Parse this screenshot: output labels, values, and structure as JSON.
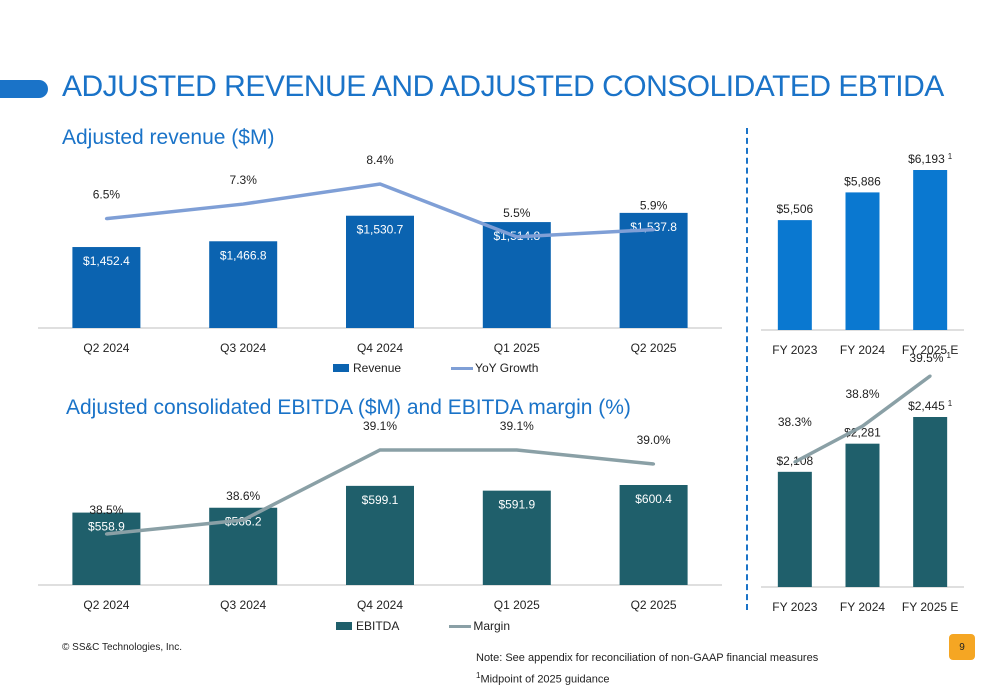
{
  "page": {
    "title": "ADJUSTED REVENUE AND ADJUSTED CONSOLIDATED EBTIDA",
    "copyright": "© SS&C Technologies, Inc.",
    "note_line1": "Note: See appendix for reconciliation of non-GAAP financial measures",
    "note_line2": "Midpoint of 2025 guidance",
    "note_sup": "1",
    "page_number": "9"
  },
  "colors": {
    "accent": "#1a73c8",
    "revenue_bar": "#0b63b0",
    "revenue_bar_fy": "#0a78d0",
    "growth_line": "#7f9fd6",
    "ebitda_bar": "#1f5f6b",
    "margin_line": "#8aa0a6"
  },
  "chart_data": [
    {
      "id": "quarterly-revenue",
      "type": "bar",
      "title": "Adjusted revenue ($M)",
      "categories": [
        "Q2 2024",
        "Q3 2024",
        "Q4 2024",
        "Q1 2025",
        "Q2 2025"
      ],
      "series": [
        {
          "name": "Revenue",
          "type": "bar",
          "values": [
            1452.4,
            1466.8,
            1530.7,
            1514.8,
            1537.8
          ],
          "labels": [
            "$1,452.4",
            "$1,466.8",
            "$1,530.7",
            "$1,514.8",
            "$1,537.8"
          ]
        },
        {
          "name": "YoY Growth",
          "type": "line",
          "values": [
            6.5,
            7.3,
            8.4,
            5.5,
            5.9
          ],
          "labels": [
            "6.5%",
            "7.3%",
            "8.4%",
            "5.5%",
            "5.9%"
          ]
        }
      ]
    },
    {
      "id": "annual-revenue",
      "type": "bar",
      "categories": [
        "FY 2023",
        "FY 2024",
        "FY 2025 E"
      ],
      "values": [
        5506,
        5886,
        6193
      ],
      "labels": [
        "$5,506",
        "$5,886",
        "$6,193"
      ],
      "footnotes": [
        "",
        "",
        "1"
      ]
    },
    {
      "id": "quarterly-ebitda",
      "type": "bar",
      "title": "Adjusted consolidated EBITDA ($M) and EBITDA margin (%)",
      "categories": [
        "Q2 2024",
        "Q3 2024",
        "Q4 2024",
        "Q1 2025",
        "Q2 2025"
      ],
      "series": [
        {
          "name": "EBITDA",
          "type": "bar",
          "values": [
            558.9,
            566.2,
            599.1,
            591.9,
            600.4
          ],
          "labels": [
            "$558.9",
            "$566.2",
            "$599.1",
            "$591.9",
            "$600.4"
          ]
        },
        {
          "name": "Margin",
          "type": "line",
          "values": [
            38.5,
            38.6,
            39.1,
            39.1,
            39.0
          ],
          "labels": [
            "38.5%",
            "38.6%",
            "39.1%",
            "39.1%",
            "39.0%"
          ]
        }
      ]
    },
    {
      "id": "annual-ebitda",
      "type": "bar",
      "categories": [
        "FY 2023",
        "FY 2024",
        "FY 2025 E"
      ],
      "series": [
        {
          "type": "bar",
          "values": [
            2108,
            2281,
            2445
          ],
          "labels": [
            "$2,108",
            "$2,281",
            "$2,445"
          ],
          "footnotes": [
            "",
            "",
            "1"
          ]
        },
        {
          "type": "line",
          "values": [
            38.3,
            38.8,
            39.5
          ],
          "labels": [
            "38.3%",
            "38.8%",
            "39.5%"
          ],
          "footnotes": [
            "",
            "",
            "1"
          ]
        }
      ]
    }
  ]
}
